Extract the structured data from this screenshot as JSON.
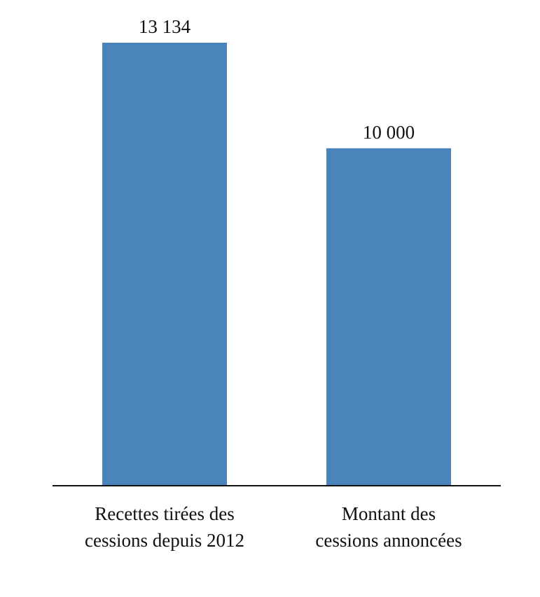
{
  "chart_data": {
    "type": "bar",
    "categories": [
      [
        "Recettes tirées des",
        "cessions depuis 2012"
      ],
      [
        "Montant des",
        "cessions annoncées"
      ]
    ],
    "values": [
      13134,
      10000
    ],
    "value_labels": [
      "13 134",
      "10 000"
    ],
    "color": "#4a84bb"
  }
}
